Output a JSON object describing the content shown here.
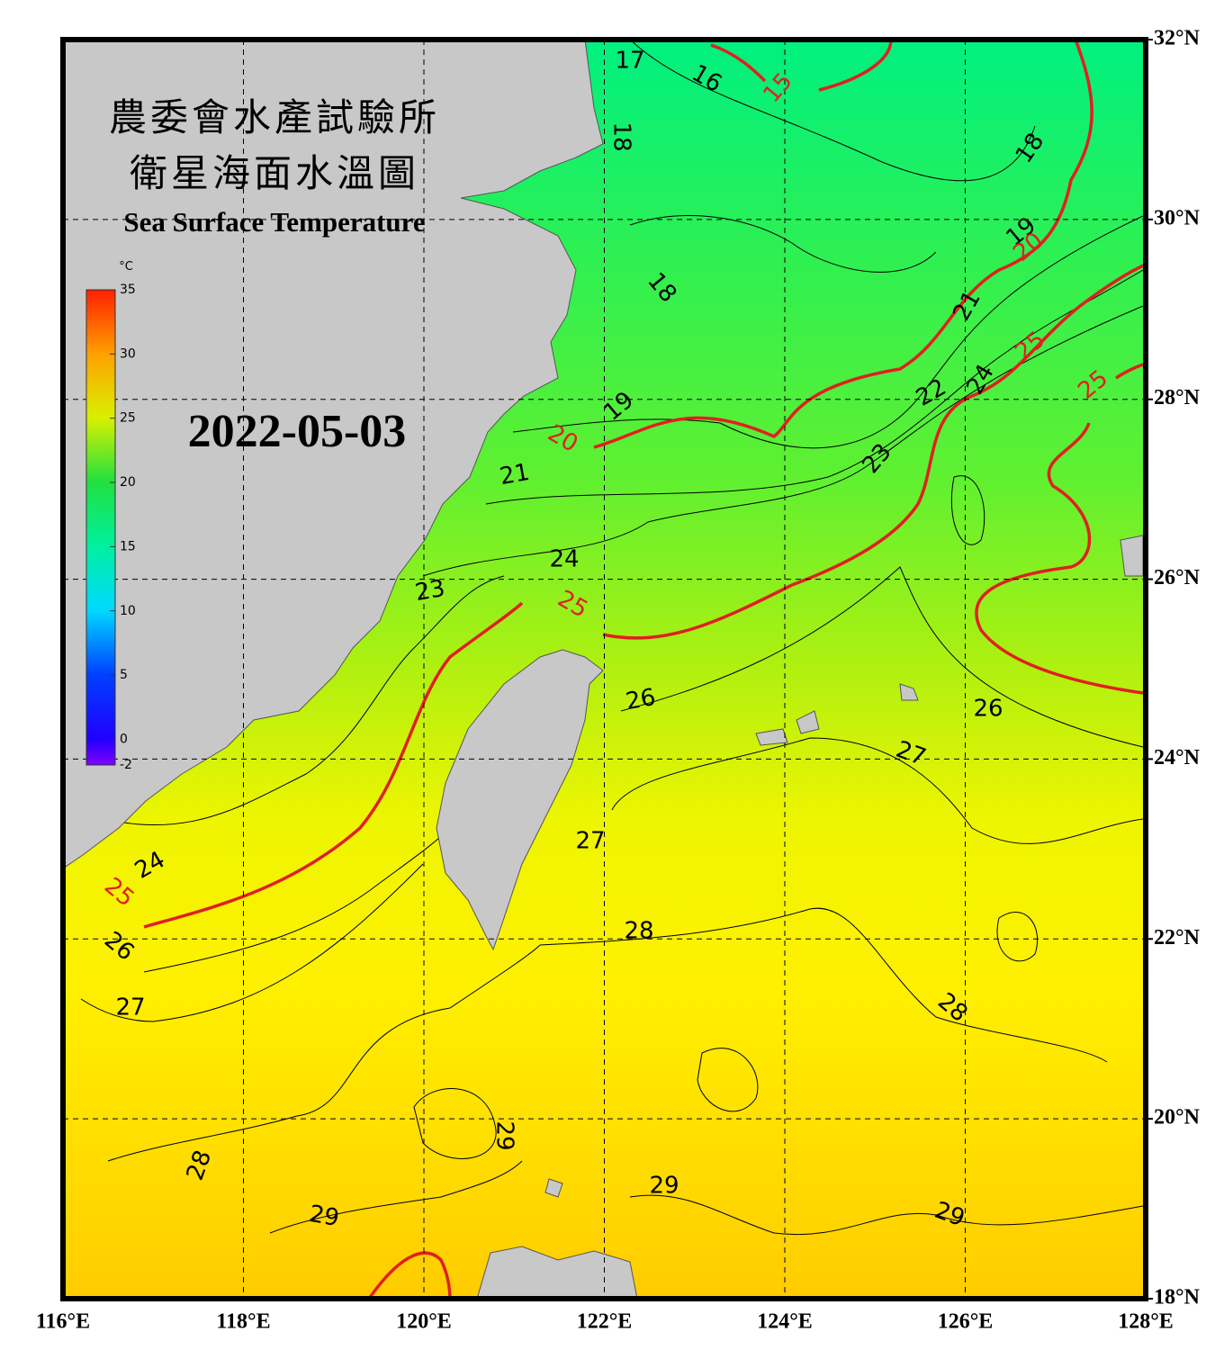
{
  "header": {
    "title_line1": "農委會水產試驗所",
    "title_line2": "衛星海面水溫圖",
    "subtitle": "Sea Surface Temperature",
    "date": "2022-05-03"
  },
  "colorbar": {
    "unit": "°C",
    "ticks": [
      35,
      30,
      25,
      20,
      15,
      10,
      5,
      0,
      -2
    ]
  },
  "lon_ticks": [
    {
      "value": 116,
      "label": "116°E"
    },
    {
      "value": 118,
      "label": "118°E"
    },
    {
      "value": 120,
      "label": "120°E"
    },
    {
      "value": 122,
      "label": "122°E"
    },
    {
      "value": 124,
      "label": "124°E"
    },
    {
      "value": 126,
      "label": "126°E"
    },
    {
      "value": 128,
      "label": "128°E"
    }
  ],
  "lat_ticks": [
    {
      "value": 18,
      "label": "18°N"
    },
    {
      "value": 20,
      "label": "20°N"
    },
    {
      "value": 22,
      "label": "22°N"
    },
    {
      "value": 24,
      "label": "24°N"
    },
    {
      "value": 26,
      "label": "26°N"
    },
    {
      "value": 28,
      "label": "28°N"
    },
    {
      "value": 30,
      "label": "30°N"
    },
    {
      "value": 32,
      "label": "32°N"
    }
  ],
  "contour_labels": [
    17,
    16,
    15,
    18,
    18,
    19,
    20,
    18,
    21,
    25,
    25,
    22,
    24,
    19,
    20,
    23,
    21,
    24,
    23,
    25,
    26,
    26,
    27,
    27,
    24,
    25,
    28,
    26,
    27,
    28,
    29,
    28,
    29,
    29,
    29
  ]
}
